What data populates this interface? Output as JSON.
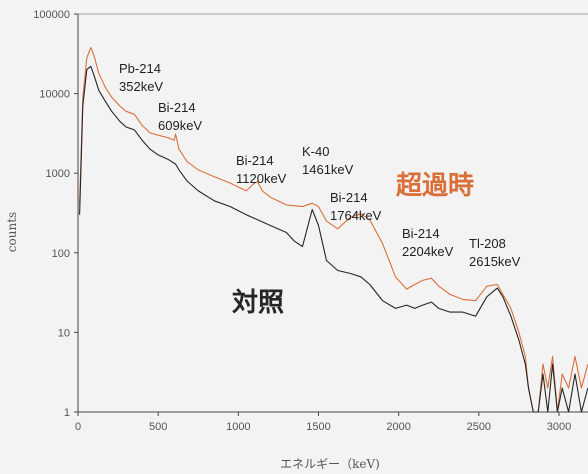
{
  "chart_data": {
    "type": "line",
    "title": "",
    "xlabel": "エネルギー（keV)",
    "ylabel": "counts",
    "x_scale": "linear",
    "y_scale": "log",
    "xlim": [
      0,
      3200
    ],
    "ylim": [
      1,
      100000
    ],
    "grid": false,
    "x_ticks": [
      0,
      500,
      1000,
      1500,
      2000,
      2500,
      3000
    ],
    "x_tick_labels": [
      "0",
      "500",
      "1000",
      "1500",
      "2000",
      "2500",
      "3000"
    ],
    "y_ticks": [
      1,
      10,
      100,
      1000,
      10000,
      100000
    ],
    "y_tick_labels": [
      "1",
      "10",
      "100",
      "1000",
      "10000",
      "100000"
    ],
    "colors": {
      "excess": "#d9703a",
      "control": "#262626",
      "axis": "#444444"
    },
    "series": [
      {
        "name": "超過時",
        "x": [
          10,
          30,
          55,
          80,
          100,
          130,
          170,
          210,
          260,
          300,
          352,
          400,
          450,
          500,
          560,
          600,
          609,
          630,
          680,
          750,
          850,
          950,
          1050,
          1100,
          1120,
          1150,
          1200,
          1300,
          1400,
          1461,
          1500,
          1550,
          1620,
          1700,
          1764,
          1820,
          1900,
          1980,
          2050,
          2100,
          2150,
          2204,
          2250,
          2320,
          2400,
          2480,
          2550,
          2615,
          2650,
          2700,
          2750,
          2790,
          2810,
          2840,
          2870,
          2900,
          2930,
          2960,
          2990,
          3020,
          3060,
          3100,
          3140,
          3180
        ],
        "y": [
          400,
          9000,
          28000,
          38000,
          30000,
          18000,
          12000,
          9000,
          7000,
          6000,
          5500,
          4000,
          3200,
          3000,
          2800,
          2600,
          3100,
          2000,
          1400,
          1100,
          900,
          750,
          600,
          750,
          780,
          600,
          500,
          400,
          380,
          420,
          380,
          250,
          200,
          280,
          310,
          260,
          130,
          50,
          35,
          40,
          45,
          48,
          38,
          30,
          26,
          25,
          38,
          40,
          30,
          20,
          10,
          5,
          2,
          1,
          1,
          4,
          2,
          5,
          1,
          3,
          2,
          5,
          2,
          4
        ]
      },
      {
        "name": "対照",
        "x": [
          10,
          30,
          55,
          80,
          100,
          130,
          170,
          210,
          260,
          300,
          352,
          400,
          450,
          500,
          560,
          609,
          630,
          680,
          750,
          850,
          950,
          1050,
          1120,
          1200,
          1300,
          1350,
          1400,
          1461,
          1500,
          1550,
          1620,
          1700,
          1764,
          1820,
          1900,
          1980,
          2050,
          2100,
          2150,
          2204,
          2250,
          2320,
          2400,
          2480,
          2550,
          2615,
          2650,
          2700,
          2750,
          2790,
          2810,
          2840,
          2870,
          2900,
          2930,
          2960,
          2990,
          3020,
          3060,
          3100,
          3140,
          3180
        ],
        "y": [
          300,
          7000,
          20000,
          22000,
          17000,
          11000,
          8000,
          6000,
          4500,
          3800,
          3500,
          2600,
          2000,
          1700,
          1500,
          1300,
          1100,
          800,
          600,
          450,
          380,
          300,
          260,
          220,
          180,
          140,
          120,
          350,
          220,
          80,
          60,
          55,
          50,
          40,
          25,
          20,
          22,
          20,
          22,
          24,
          20,
          18,
          18,
          16,
          28,
          36,
          28,
          16,
          8,
          4,
          2,
          1,
          1,
          3,
          1,
          4,
          1,
          2,
          1,
          3,
          1,
          2
        ]
      }
    ],
    "annotations": [
      {
        "id": "pb214",
        "lines": [
          "Pb-214",
          "352keV"
        ]
      },
      {
        "id": "bi214-609",
        "lines": [
          "Bi-214",
          "609keV"
        ]
      },
      {
        "id": "bi214-1120",
        "lines": [
          "Bi-214",
          "1120keV"
        ]
      },
      {
        "id": "k40",
        "lines": [
          "K-40",
          "1461keV"
        ]
      },
      {
        "id": "bi214-1764",
        "lines": [
          "Bi-214",
          "1764keV"
        ]
      },
      {
        "id": "bi214-2204",
        "lines": [
          "Bi-214",
          "2204keV"
        ]
      },
      {
        "id": "tl208",
        "lines": [
          "Tl-208",
          "2615keV"
        ]
      }
    ],
    "series_labels": {
      "excess": "超過時",
      "control": "対照"
    }
  }
}
